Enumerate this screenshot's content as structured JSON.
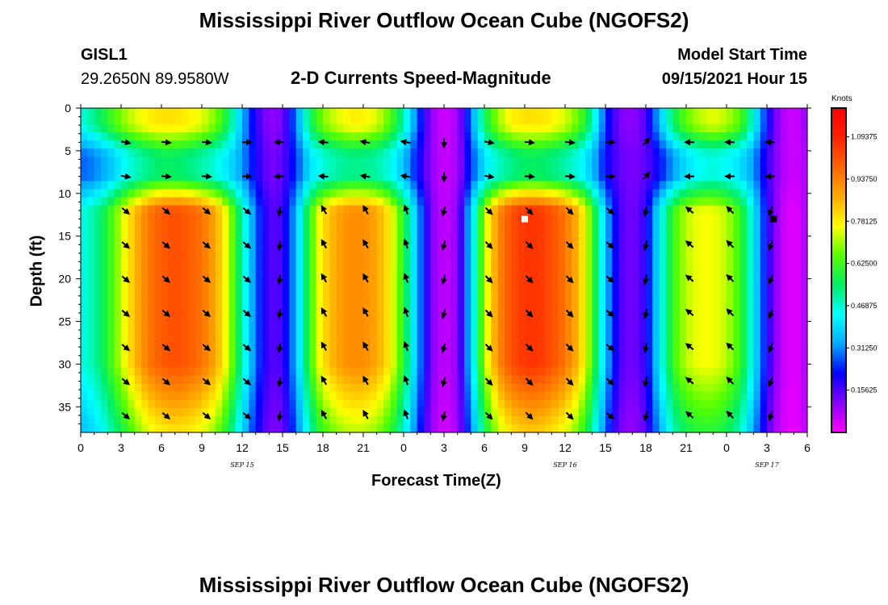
{
  "page": {
    "title_top": "Mississippi River Outflow Ocean Cube (NGOFS2)",
    "title_bottom": "Mississippi River Outflow Ocean Cube (NGOFS2)",
    "station": "GISL1",
    "coords": "29.2650N  89.9580W",
    "subtitle": "2-D Currents Speed-Magnitude",
    "model_label": "Model Start Time",
    "model_time": "09/15/2021 Hour 15"
  },
  "chart_data": {
    "type": "heatmap",
    "title": "2-D Currents Speed-Magnitude",
    "xlabel": "Forecast Time(Z)",
    "ylabel": "Depth (ft)",
    "x_range_hours": [
      0,
      54
    ],
    "ylim": [
      0,
      38
    ],
    "y_inverted": true,
    "x_tick_labels": [
      "0",
      "3",
      "6",
      "9",
      "12",
      "15",
      "18",
      "21",
      "0",
      "3",
      "6",
      "9",
      "12",
      "15",
      "18",
      "21",
      "0",
      "3",
      "6"
    ],
    "y_ticks": [
      0,
      5,
      10,
      15,
      20,
      25,
      30,
      35
    ],
    "date_labels": [
      {
        "text": "SEP 15",
        "hour": 12
      },
      {
        "text": "SEP 16",
        "hour": 36
      },
      {
        "text": "SEP 17",
        "hour": 51
      }
    ],
    "colorbar": {
      "unit": "Knots",
      "range": [
        0,
        1.2
      ],
      "tick_labels": [
        "1.09375",
        "0.93750",
        "0.78125",
        "0.62500",
        "0.46875",
        "0.31250",
        "0.15625"
      ],
      "tick_values": [
        1.09375,
        0.9375,
        0.78125,
        0.625,
        0.46875,
        0.3125,
        0.15625
      ],
      "colors": [
        "#ff00ff",
        "#8800ff",
        "#0000ff",
        "#00aaff",
        "#00ffff",
        "#00ee66",
        "#55ff00",
        "#ffff00",
        "#ffaa00",
        "#ff6600",
        "#ff2200",
        "#ff0000"
      ]
    },
    "speed_profile": {
      "hours": [
        0,
        1,
        2,
        3,
        4,
        5,
        6,
        7,
        8,
        9,
        10,
        11,
        12,
        13,
        14,
        15,
        16,
        17,
        18,
        19,
        20,
        21,
        22,
        23,
        24,
        25,
        26,
        27,
        28,
        29,
        30,
        31,
        32,
        33,
        34,
        35,
        36,
        37,
        38,
        39,
        40,
        41,
        42,
        43,
        44,
        45,
        46,
        47,
        48,
        49,
        50,
        51,
        52,
        53,
        54
      ],
      "surface_speed": [
        0.45,
        0.52,
        0.6,
        0.68,
        0.74,
        0.78,
        0.8,
        0.8,
        0.78,
        0.75,
        0.68,
        0.55,
        0.35,
        0.18,
        0.1,
        0.12,
        0.3,
        0.55,
        0.68,
        0.74,
        0.78,
        0.78,
        0.74,
        0.65,
        0.5,
        0.28,
        0.1,
        0.04,
        0.08,
        0.3,
        0.55,
        0.7,
        0.78,
        0.8,
        0.8,
        0.78,
        0.74,
        0.66,
        0.5,
        0.25,
        0.12,
        0.1,
        0.15,
        0.35,
        0.55,
        0.66,
        0.72,
        0.75,
        0.72,
        0.65,
        0.45,
        0.22,
        0.08,
        0.04,
        0.1
      ],
      "mid_speed": [
        0.28,
        0.3,
        0.35,
        0.42,
        0.48,
        0.52,
        0.55,
        0.55,
        0.53,
        0.5,
        0.46,
        0.4,
        0.32,
        0.2,
        0.12,
        0.14,
        0.25,
        0.4,
        0.46,
        0.5,
        0.52,
        0.52,
        0.5,
        0.45,
        0.36,
        0.22,
        0.1,
        0.05,
        0.08,
        0.25,
        0.4,
        0.48,
        0.52,
        0.55,
        0.55,
        0.53,
        0.5,
        0.45,
        0.36,
        0.22,
        0.14,
        0.12,
        0.14,
        0.22,
        0.32,
        0.4,
        0.44,
        0.46,
        0.44,
        0.4,
        0.32,
        0.18,
        0.08,
        0.04,
        0.08
      ],
      "deep_speed": [
        0.45,
        0.5,
        0.6,
        0.72,
        0.85,
        0.95,
        1.0,
        1.02,
        1.0,
        0.96,
        0.88,
        0.72,
        0.5,
        0.28,
        0.15,
        0.16,
        0.35,
        0.62,
        0.8,
        0.88,
        0.92,
        0.92,
        0.88,
        0.78,
        0.6,
        0.34,
        0.12,
        0.05,
        0.1,
        0.38,
        0.7,
        0.92,
        1.02,
        1.06,
        1.06,
        1.02,
        0.96,
        0.85,
        0.64,
        0.36,
        0.16,
        0.12,
        0.18,
        0.42,
        0.62,
        0.72,
        0.76,
        0.76,
        0.72,
        0.62,
        0.42,
        0.2,
        0.06,
        0.02,
        0.08
      ]
    },
    "vector_columns_hours": [
      3.3,
      6.3,
      9.3,
      12.3,
      14.8,
      18.1,
      21.2,
      24.2,
      27.0,
      30.3,
      33.3,
      36.3,
      39.3,
      42.0,
      45.3,
      48.3,
      51.3
    ],
    "vector_rows_depth": [
      4,
      8,
      12,
      16,
      20,
      24,
      28,
      32,
      36
    ],
    "vector_angles_deg": {
      "shallow": [
        10,
        5,
        5,
        0,
        180,
        185,
        190,
        190,
        90,
        10,
        5,
        5,
        0,
        -45,
        180,
        180,
        180
      ],
      "deep": [
        40,
        40,
        40,
        40,
        100,
        -120,
        -120,
        -110,
        105,
        45,
        45,
        45,
        40,
        100,
        -140,
        -135,
        110
      ]
    },
    "markers": [
      {
        "hour": 33.0,
        "depth": 13,
        "color": "#ffffff"
      },
      {
        "hour": 51.5,
        "depth": 13,
        "color": "#000000"
      }
    ]
  }
}
